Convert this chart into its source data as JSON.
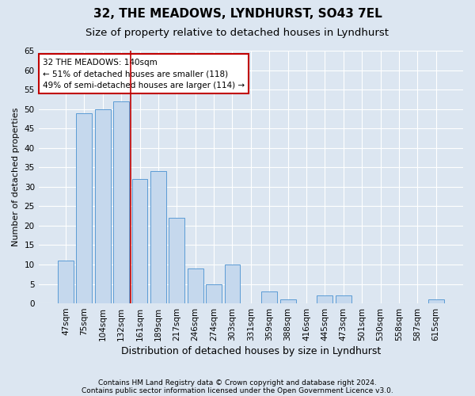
{
  "title1": "32, THE MEADOWS, LYNDHURST, SO43 7EL",
  "title2": "Size of property relative to detached houses in Lyndhurst",
  "xlabel": "Distribution of detached houses by size in Lyndhurst",
  "ylabel": "Number of detached properties",
  "footer1": "Contains HM Land Registry data © Crown copyright and database right 2024.",
  "footer2": "Contains public sector information licensed under the Open Government Licence v3.0.",
  "categories": [
    "47sqm",
    "75sqm",
    "104sqm",
    "132sqm",
    "161sqm",
    "189sqm",
    "217sqm",
    "246sqm",
    "274sqm",
    "303sqm",
    "331sqm",
    "359sqm",
    "388sqm",
    "416sqm",
    "445sqm",
    "473sqm",
    "501sqm",
    "530sqm",
    "558sqm",
    "587sqm",
    "615sqm"
  ],
  "values": [
    11,
    49,
    50,
    52,
    32,
    34,
    22,
    9,
    5,
    10,
    0,
    3,
    1,
    0,
    2,
    2,
    0,
    0,
    0,
    0,
    1
  ],
  "bar_color": "#c5d8ed",
  "bar_edge_color": "#5b9bd5",
  "bg_color": "#dce6f1",
  "plot_bg_color": "#dce6f1",
  "grid_color": "#ffffff",
  "vline_x": 3.5,
  "vline_color": "#c00000",
  "annotation_line1": "32 THE MEADOWS: 140sqm",
  "annotation_line2": "← 51% of detached houses are smaller (118)",
  "annotation_line3": "49% of semi-detached houses are larger (114) →",
  "annotation_box_color": "#ffffff",
  "annotation_box_edge": "#c00000",
  "ylim": [
    0,
    65
  ],
  "yticks": [
    0,
    5,
    10,
    15,
    20,
    25,
    30,
    35,
    40,
    45,
    50,
    55,
    60,
    65
  ],
  "title1_fontsize": 11,
  "title2_fontsize": 9.5,
  "xlabel_fontsize": 9,
  "ylabel_fontsize": 8,
  "tick_fontsize": 7.5,
  "annot_fontsize": 7.5,
  "footer_fontsize": 6.5
}
